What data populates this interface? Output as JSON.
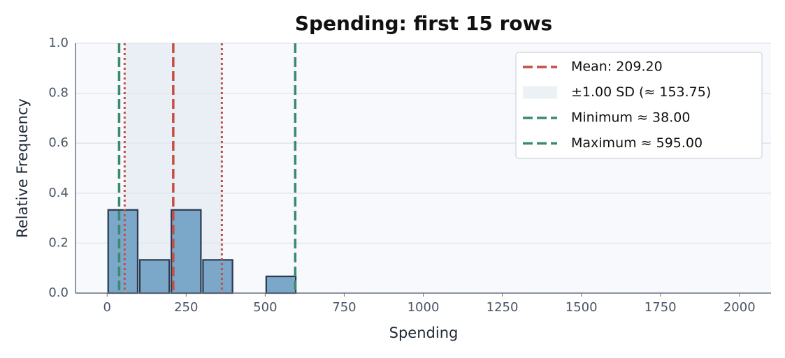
{
  "chart_data": {
    "type": "histogram",
    "title": "Spending: first 15 rows",
    "x_label": "Spending",
    "y_label": "Relative Frequency",
    "bins": [
      0,
      100,
      200,
      300,
      400,
      500,
      600
    ],
    "values": [
      0.333,
      0.133,
      0.333,
      0.133,
      0,
      0.067
    ],
    "color": "#7ba7c9",
    "edgecolor": "#2b3a4e",
    "xlim": [
      -100,
      2100
    ],
    "ylim": [
      0,
      1
    ],
    "xticks": [
      0,
      250,
      500,
      750,
      1000,
      1250,
      1500,
      1750,
      2000
    ],
    "yticks": [
      {
        "value": 0,
        "label": "0.0"
      },
      {
        "value": 0.2,
        "label": "0.2"
      },
      {
        "value": 0.4,
        "label": "0.4"
      },
      {
        "value": 0.6,
        "label": "0.6"
      },
      {
        "value": 0.8,
        "label": "0.8"
      },
      {
        "value": 1,
        "label": "1.0"
      }
    ],
    "grid": true,
    "legend_loc": "upper right",
    "reference_lines": {
      "mean": {
        "value": 209.2,
        "label": "Mean: 209.20",
        "color": "#c44e45"
      },
      "sd_band": {
        "sd": 153.75,
        "multiplier": 1,
        "label": "±1.00 SD (≈ 153.75)",
        "color": "#dfe7ef"
      },
      "minimum": {
        "value": 38,
        "label": "Minimum ≈ 38.00",
        "color": "#3a8a6e"
      },
      "maximum": {
        "value": 595,
        "label": "Maximum ≈ 595.00",
        "color": "#3a8a6e"
      }
    }
  }
}
